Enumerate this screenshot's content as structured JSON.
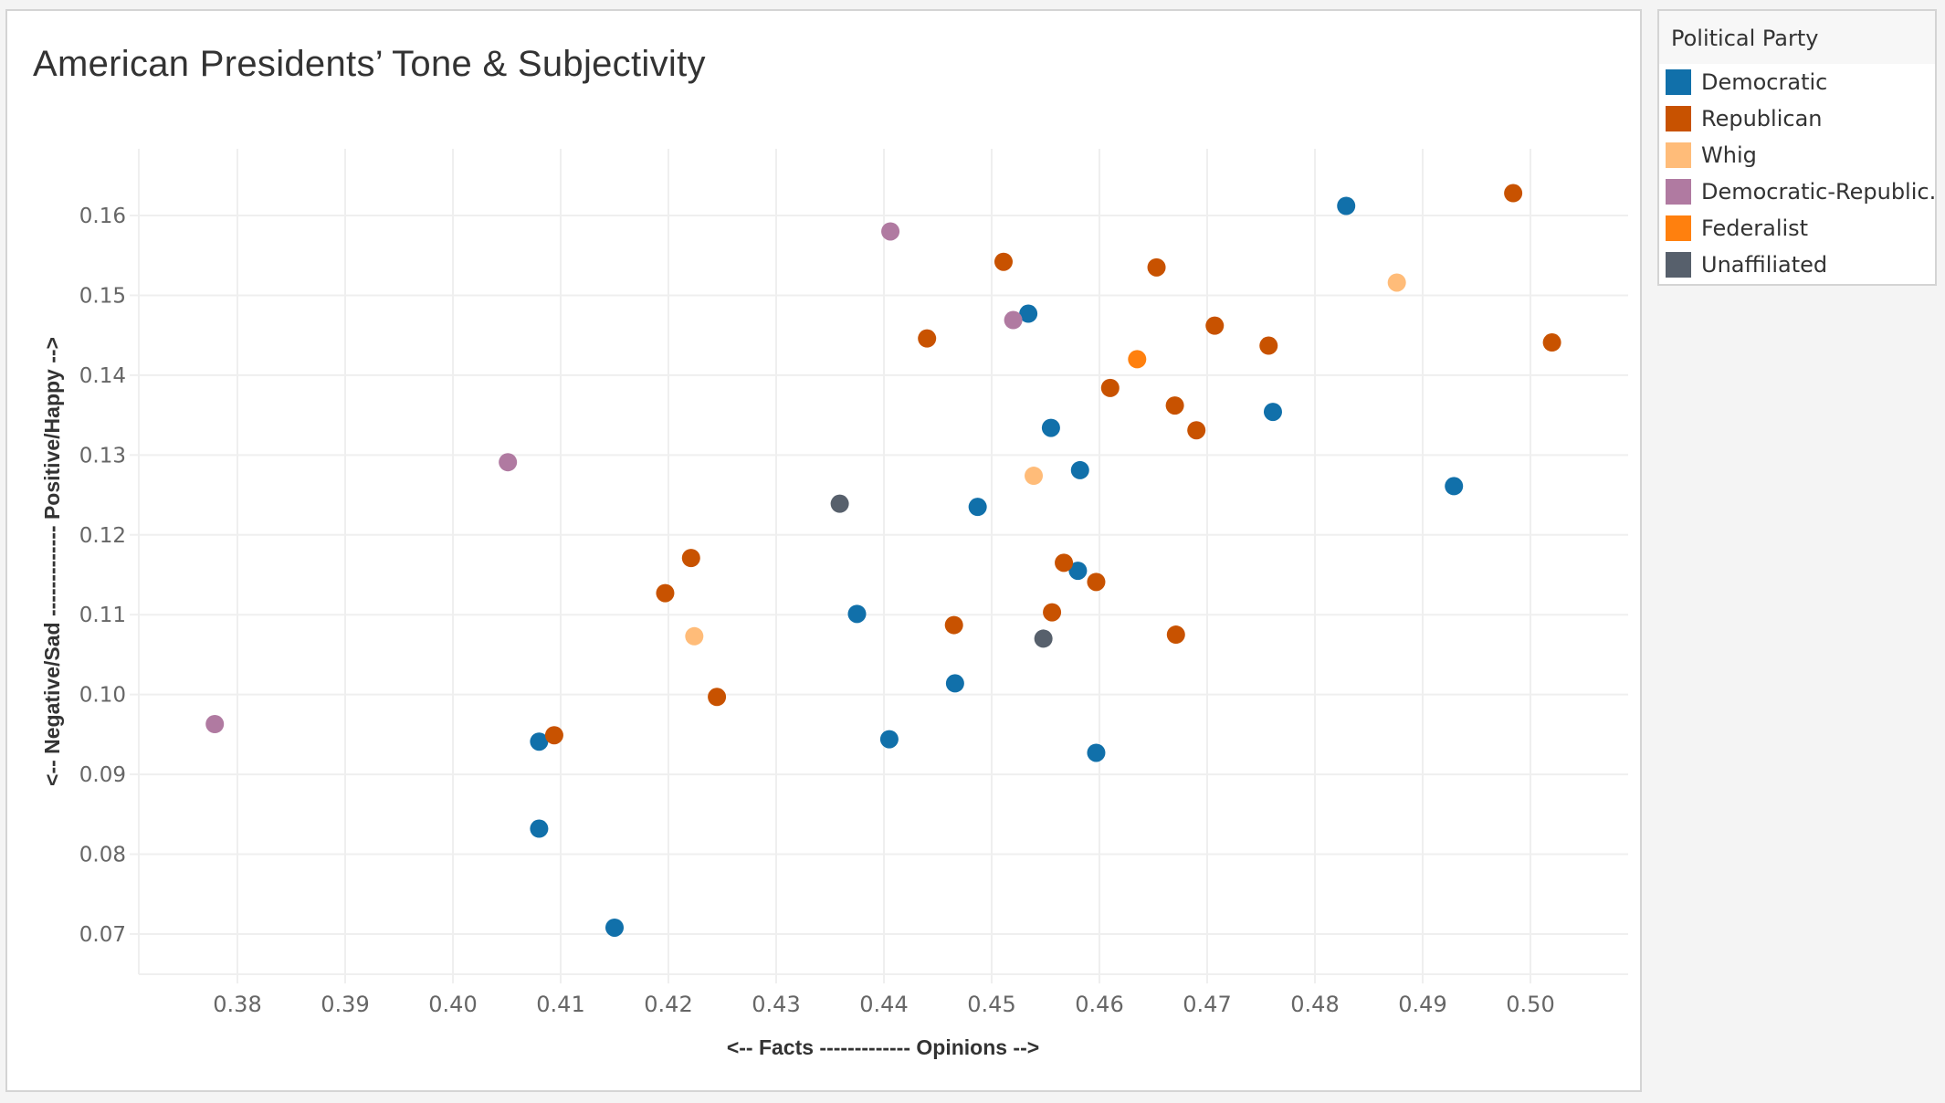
{
  "chart_data": {
    "type": "scatter",
    "title": "American Presidents’ Tone & Subjectivity",
    "xlabel": "<-- Facts ------------- Opinions -->",
    "ylabel": "<-- Negative/Sad ------------- Positive/Happy -->",
    "xlim": [
      0.371,
      0.505
    ],
    "ylim": [
      0.065,
      0.168
    ],
    "x_ticks": [
      "0.38",
      "0.39",
      "0.40",
      "0.41",
      "0.42",
      "0.43",
      "0.44",
      "0.45",
      "0.46",
      "0.47",
      "0.48",
      "0.49",
      "0.50"
    ],
    "y_ticks": [
      "0.07",
      "0.08",
      "0.09",
      "0.10",
      "0.11",
      "0.12",
      "0.13",
      "0.14",
      "0.15",
      "0.16"
    ],
    "grid": true,
    "legend_placement": "right",
    "legend_title": "Political Party",
    "series": [
      {
        "name": "Democratic",
        "color": "#1170aa",
        "points": [
          [
            0.4829,
            0.1612
          ],
          [
            0.4534,
            0.1477
          ],
          [
            0.4555,
            0.1334
          ],
          [
            0.4761,
            0.1354
          ],
          [
            0.4582,
            0.1281
          ],
          [
            0.4487,
            0.1235
          ],
          [
            0.4929,
            0.1261
          ],
          [
            0.458,
            0.1155
          ],
          [
            0.4375,
            0.1101
          ],
          [
            0.4466,
            0.1014
          ],
          [
            0.4405,
            0.0944
          ],
          [
            0.4597,
            0.0927
          ],
          [
            0.408,
            0.0941
          ],
          [
            0.408,
            0.0832
          ],
          [
            0.415,
            0.0708
          ]
        ]
      },
      {
        "name": "Republican",
        "color": "#c85200",
        "points": [
          [
            0.4984,
            0.1628
          ],
          [
            0.4511,
            0.1542
          ],
          [
            0.4653,
            0.1535
          ],
          [
            0.444,
            0.1446
          ],
          [
            0.4707,
            0.1462
          ],
          [
            0.4757,
            0.1437
          ],
          [
            0.502,
            0.1441
          ],
          [
            0.461,
            0.1384
          ],
          [
            0.467,
            0.1362
          ],
          [
            0.469,
            0.1331
          ],
          [
            0.4221,
            0.1171
          ],
          [
            0.4197,
            0.1127
          ],
          [
            0.4567,
            0.1165
          ],
          [
            0.4597,
            0.1141
          ],
          [
            0.4556,
            0.1103
          ],
          [
            0.4465,
            0.1087
          ],
          [
            0.4671,
            0.1075
          ],
          [
            0.4245,
            0.0997
          ],
          [
            0.4094,
            0.0949
          ]
        ]
      },
      {
        "name": "Whig",
        "color": "#ffbc79",
        "points": [
          [
            0.4876,
            0.1516
          ],
          [
            0.4539,
            0.1274
          ],
          [
            0.4224,
            0.1073
          ]
        ]
      },
      {
        "name": "Democratic-Republic..",
        "color": "#b07aa1",
        "points": [
          [
            0.4406,
            0.158
          ],
          [
            0.452,
            0.1469
          ],
          [
            0.4051,
            0.1291
          ],
          [
            0.3779,
            0.0963
          ]
        ]
      },
      {
        "name": "Federalist",
        "color": "#ff800e",
        "points": [
          [
            0.4635,
            0.142
          ]
        ]
      },
      {
        "name": "Unaffiliated",
        "color": "#57606c",
        "points": [
          [
            0.4359,
            0.1239
          ],
          [
            0.4548,
            0.107
          ]
        ]
      }
    ]
  }
}
